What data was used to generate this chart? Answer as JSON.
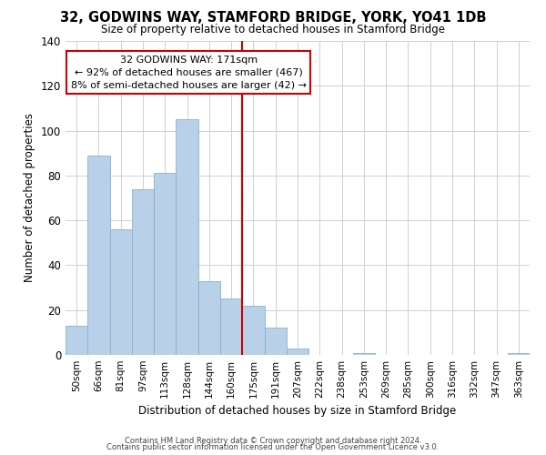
{
  "title": "32, GODWINS WAY, STAMFORD BRIDGE, YORK, YO41 1DB",
  "subtitle": "Size of property relative to detached houses in Stamford Bridge",
  "xlabel": "Distribution of detached houses by size in Stamford Bridge",
  "ylabel": "Number of detached properties",
  "bar_labels": [
    "50sqm",
    "66sqm",
    "81sqm",
    "97sqm",
    "113sqm",
    "128sqm",
    "144sqm",
    "160sqm",
    "175sqm",
    "191sqm",
    "207sqm",
    "222sqm",
    "238sqm",
    "253sqm",
    "269sqm",
    "285sqm",
    "300sqm",
    "316sqm",
    "332sqm",
    "347sqm",
    "363sqm"
  ],
  "bar_heights": [
    13,
    89,
    56,
    74,
    81,
    105,
    33,
    25,
    22,
    12,
    3,
    0,
    0,
    1,
    0,
    0,
    0,
    0,
    0,
    0,
    1
  ],
  "bar_color": "#b8d0e8",
  "bar_edge_color": "#8ab0d0",
  "marker_index": 8,
  "marker_line_color": "#cc0000",
  "annotation_line1": "32 GODWINS WAY: 171sqm",
  "annotation_line2": "← 92% of detached houses are smaller (467)",
  "annotation_line3": "8% of semi-detached houses are larger (42) →",
  "annotation_box_color": "#ffffff",
  "annotation_box_edge": "#cc0000",
  "ylim": [
    0,
    140
  ],
  "yticks": [
    0,
    20,
    40,
    60,
    80,
    100,
    120,
    140
  ],
  "footer1": "Contains HM Land Registry data © Crown copyright and database right 2024.",
  "footer2": "Contains public sector information licensed under the Open Government Licence v3.0.",
  "background_color": "#ffffff",
  "grid_color": "#d0d0d0"
}
